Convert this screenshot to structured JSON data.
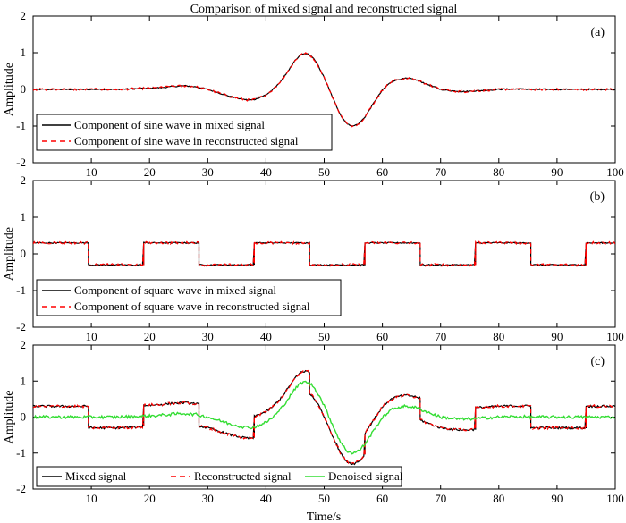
{
  "chart_data": {
    "title": "Comparison of mixed signal and reconstructed signal",
    "xlabel": "Time/s",
    "ylabel": "Amplitude",
    "xlim": [
      0,
      100
    ],
    "ylim": [
      -2,
      2
    ],
    "xticks": [
      10,
      20,
      30,
      40,
      50,
      60,
      70,
      80,
      90,
      100
    ],
    "yticks": [
      -2,
      -1,
      0,
      1,
      2
    ],
    "colors": {
      "mixed": "#000000",
      "reconstructed": "#ff0000",
      "denoised": "#33dd33"
    },
    "panels": [
      {
        "tag": "(a)",
        "type": "line",
        "x": [
          0,
          2,
          4,
          6,
          8,
          10,
          12,
          14,
          16,
          18,
          20,
          22,
          24,
          26,
          28,
          30,
          32,
          34,
          36,
          37,
          38,
          40,
          41,
          42,
          43,
          44,
          45,
          46,
          47,
          48,
          49,
          50,
          51,
          52,
          53,
          54,
          55,
          56,
          57,
          58,
          59,
          60,
          61,
          62,
          63,
          64,
          65,
          66,
          68,
          70,
          72,
          74,
          76,
          78,
          80,
          82,
          84,
          86,
          88,
          90,
          92,
          94,
          96,
          98,
          100
        ],
        "series": [
          {
            "name": "Component of sine wave in mixed signal",
            "values": [
              0.0,
              0.0,
              0.0,
              0.0,
              0.0,
              0.0,
              0.0,
              0.0,
              0.01,
              0.02,
              0.03,
              0.05,
              0.08,
              0.1,
              0.07,
              0.0,
              -0.1,
              -0.2,
              -0.27,
              -0.29,
              -0.28,
              -0.15,
              -0.03,
              0.12,
              0.32,
              0.55,
              0.78,
              0.95,
              0.98,
              0.88,
              0.64,
              0.32,
              -0.05,
              -0.42,
              -0.75,
              -0.95,
              -1.0,
              -0.93,
              -0.75,
              -0.5,
              -0.25,
              -0.02,
              0.14,
              0.24,
              0.28,
              0.3,
              0.29,
              0.25,
              0.12,
              0.0,
              -0.04,
              -0.06,
              -0.04,
              -0.02,
              0.0,
              0.01,
              0.01,
              0.0,
              0.0,
              0.0,
              0.0,
              0.0,
              0.0,
              0.0,
              0.0
            ]
          },
          {
            "name": "Component of sine wave in reconstructed signal",
            "values": [
              0.0,
              0.0,
              0.0,
              0.0,
              0.0,
              0.0,
              0.0,
              0.0,
              0.01,
              0.02,
              0.03,
              0.05,
              0.08,
              0.1,
              0.07,
              0.0,
              -0.1,
              -0.2,
              -0.27,
              -0.29,
              -0.28,
              -0.15,
              -0.03,
              0.12,
              0.32,
              0.55,
              0.78,
              0.95,
              0.98,
              0.88,
              0.64,
              0.32,
              -0.05,
              -0.42,
              -0.75,
              -0.95,
              -1.0,
              -0.93,
              -0.75,
              -0.5,
              -0.25,
              -0.02,
              0.14,
              0.24,
              0.28,
              0.3,
              0.29,
              0.25,
              0.12,
              0.0,
              -0.04,
              -0.06,
              -0.04,
              -0.02,
              0.0,
              0.01,
              0.01,
              0.0,
              0.0,
              0.0,
              0.0,
              0.0,
              0.0,
              0.0,
              0.0
            ]
          }
        ],
        "legend": [
          {
            "label": "Component of sine wave in mixed signal",
            "style": "solid",
            "color": "#000000"
          },
          {
            "label": "Component of sine wave in reconstructed signal",
            "style": "dashed",
            "color": "#ff0000"
          }
        ]
      },
      {
        "tag": "(b)",
        "type": "line",
        "x": [
          0,
          9.5,
          9.5,
          19,
          19,
          28.5,
          28.5,
          38,
          38,
          47.5,
          47.5,
          57,
          57,
          66.5,
          66.5,
          76,
          76,
          85.5,
          85.5,
          95,
          95,
          100
        ],
        "series": [
          {
            "name": "Component of square wave in mixed signal",
            "values": [
              0.3,
              0.3,
              -0.3,
              -0.3,
              0.3,
              0.3,
              -0.3,
              -0.3,
              0.3,
              0.3,
              -0.3,
              -0.3,
              0.3,
              0.3,
              -0.3,
              -0.3,
              0.3,
              0.3,
              -0.3,
              -0.3,
              0.3,
              0.3
            ]
          },
          {
            "name": "Component of square wave in reconstructed signal",
            "values": [
              0.3,
              0.3,
              -0.3,
              -0.3,
              0.3,
              0.3,
              -0.3,
              -0.3,
              0.3,
              0.3,
              -0.3,
              -0.3,
              0.3,
              0.3,
              -0.3,
              -0.3,
              0.3,
              0.3,
              -0.3,
              -0.3,
              0.3,
              0.3
            ]
          }
        ],
        "legend": [
          {
            "label": "Component of square wave in mixed signal",
            "style": "solid",
            "color": "#000000"
          },
          {
            "label": "Component of square wave in reconstructed signal",
            "style": "dashed",
            "color": "#ff0000"
          }
        ]
      },
      {
        "tag": "(c)",
        "type": "line",
        "series": [
          {
            "name": "Mixed signal",
            "composition": "sine + square"
          },
          {
            "name": "Reconstructed signal",
            "composition": "sine + square"
          },
          {
            "name": "Denoised signal",
            "composition": "sine"
          }
        ],
        "legend": [
          {
            "label": "Mixed signal",
            "style": "solid",
            "color": "#000000"
          },
          {
            "label": "Reconstructed signal",
            "style": "dashed",
            "color": "#ff0000"
          },
          {
            "label": "Denoised signal",
            "style": "solid",
            "color": "#33dd33"
          }
        ]
      }
    ]
  }
}
